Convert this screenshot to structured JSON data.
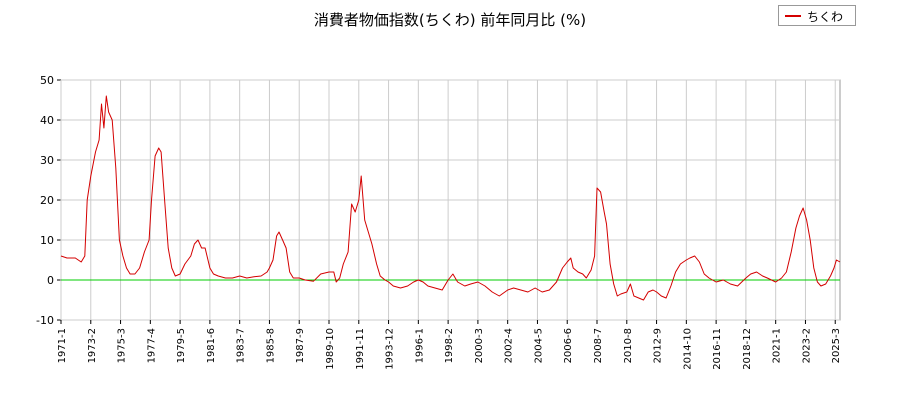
{
  "chart_data": {
    "type": "line",
    "title": "消費者物価指数(ちくわ)  前年同月比 (%)",
    "xlabel": "",
    "ylabel": "",
    "ylim": [
      -10,
      50
    ],
    "yticks": [
      -10,
      0,
      10,
      20,
      30,
      40,
      50
    ],
    "xlim": [
      "1971-1",
      "2025-7"
    ],
    "xticks": [
      "1971-1",
      "1973-2",
      "1975-3",
      "1977-4",
      "1979-5",
      "1981-6",
      "1983-7",
      "1985-8",
      "1987-9",
      "1989-10",
      "1991-11",
      "1993-12",
      "1996-1",
      "1998-2",
      "2000-3",
      "2002-4",
      "2004-5",
      "2006-6",
      "2008-7",
      "2010-8",
      "2012-9",
      "2014-10",
      "2016-11",
      "2018-12",
      "2021-1",
      "2023-2",
      "2025-3"
    ],
    "grid": true,
    "legend": "top-right",
    "colors": {
      "series": "#d40000",
      "zero_line": "#00cc00",
      "grid": "#cccccc"
    },
    "series": [
      {
        "name": "ちくわ",
        "points": [
          [
            "1971-1",
            6
          ],
          [
            "1971-6",
            5.5
          ],
          [
            "1972-1",
            5.5
          ],
          [
            "1972-6",
            4.5
          ],
          [
            "1972-9",
            6
          ],
          [
            "1972-11",
            20
          ],
          [
            "1973-2",
            26
          ],
          [
            "1973-6",
            32
          ],
          [
            "1973-9",
            35
          ],
          [
            "1973-11",
            44
          ],
          [
            "1974-1",
            38
          ],
          [
            "1974-3",
            46
          ],
          [
            "1974-5",
            42
          ],
          [
            "1974-8",
            40
          ],
          [
            "1974-11",
            28
          ],
          [
            "1975-2",
            10
          ],
          [
            "1975-5",
            6
          ],
          [
            "1975-8",
            3
          ],
          [
            "1975-11",
            1.5
          ],
          [
            "1976-3",
            1.5
          ],
          [
            "1976-7",
            3
          ],
          [
            "1976-11",
            7
          ],
          [
            "1977-3",
            10
          ],
          [
            "1977-5",
            20
          ],
          [
            "1977-8",
            31
          ],
          [
            "1977-11",
            33
          ],
          [
            "1978-1",
            32
          ],
          [
            "1978-4",
            20
          ],
          [
            "1978-7",
            8
          ],
          [
            "1978-10",
            3
          ],
          [
            "1979-1",
            1
          ],
          [
            "1979-5",
            1.5
          ],
          [
            "1979-9",
            4
          ],
          [
            "1980-2",
            6
          ],
          [
            "1980-5",
            9
          ],
          [
            "1980-8",
            10
          ],
          [
            "1980-11",
            8
          ],
          [
            "1981-2",
            8
          ],
          [
            "1981-6",
            3
          ],
          [
            "1981-9",
            1.5
          ],
          [
            "1982-1",
            1
          ],
          [
            "1982-7",
            0.5
          ],
          [
            "1983-1",
            0.5
          ],
          [
            "1983-7",
            1
          ],
          [
            "1984-1",
            0.5
          ],
          [
            "1984-7",
            0.8
          ],
          [
            "1985-1",
            1
          ],
          [
            "1985-6",
            2
          ],
          [
            "1985-8",
            3
          ],
          [
            "1985-11",
            5
          ],
          [
            "1986-2",
            11
          ],
          [
            "1986-4",
            12
          ],
          [
            "1986-7",
            10
          ],
          [
            "1986-10",
            8
          ],
          [
            "1987-1",
            2
          ],
          [
            "1987-4",
            0.5
          ],
          [
            "1987-9",
            0.5
          ],
          [
            "1988-2",
            0
          ],
          [
            "1988-9",
            -0.3
          ],
          [
            "1989-3",
            1.5
          ],
          [
            "1989-10",
            2
          ],
          [
            "1990-2",
            2
          ],
          [
            "1990-4",
            -0.5
          ],
          [
            "1990-7",
            0.5
          ],
          [
            "1990-10",
            4
          ],
          [
            "1991-2",
            7
          ],
          [
            "1991-5",
            19
          ],
          [
            "1991-8",
            17
          ],
          [
            "1991-11",
            20
          ],
          [
            "1992-1",
            26
          ],
          [
            "1992-4",
            15
          ],
          [
            "1992-7",
            12
          ],
          [
            "1992-10",
            9
          ],
          [
            "1993-2",
            4
          ],
          [
            "1993-5",
            1
          ],
          [
            "1993-9",
            0
          ],
          [
            "1993-12",
            -0.5
          ],
          [
            "1994-4",
            -1.5
          ],
          [
            "1994-10",
            -2
          ],
          [
            "1995-4",
            -1.5
          ],
          [
            "1995-9",
            -0.5
          ],
          [
            "1996-1",
            0
          ],
          [
            "1996-5",
            -0.5
          ],
          [
            "1996-9",
            -1.5
          ],
          [
            "1997-3",
            -2
          ],
          [
            "1997-9",
            -2.5
          ],
          [
            "1998-2",
            0
          ],
          [
            "1998-6",
            1.5
          ],
          [
            "1998-10",
            -0.5
          ],
          [
            "1999-4",
            -1.5
          ],
          [
            "1999-9",
            -1
          ],
          [
            "2000-3",
            -0.5
          ],
          [
            "2000-9",
            -1.5
          ],
          [
            "2001-3",
            -3
          ],
          [
            "2001-9",
            -4
          ],
          [
            "2002-4",
            -2.5
          ],
          [
            "2002-9",
            -2
          ],
          [
            "2003-3",
            -2.5
          ],
          [
            "2003-9",
            -3
          ],
          [
            "2004-3",
            -2
          ],
          [
            "2004-9",
            -3
          ],
          [
            "2005-3",
            -2.5
          ],
          [
            "2005-9",
            -0.5
          ],
          [
            "2006-2",
            3
          ],
          [
            "2006-6",
            4.5
          ],
          [
            "2006-9",
            5.5
          ],
          [
            "2006-11",
            3
          ],
          [
            "2007-3",
            2
          ],
          [
            "2007-7",
            1.5
          ],
          [
            "2007-10",
            0.5
          ],
          [
            "2008-2",
            2.5
          ],
          [
            "2008-5",
            6
          ],
          [
            "2008-7",
            23
          ],
          [
            "2008-10",
            22
          ],
          [
            "2009-1",
            17
          ],
          [
            "2009-3",
            14
          ],
          [
            "2009-6",
            4
          ],
          [
            "2009-9",
            -1
          ],
          [
            "2009-12",
            -4
          ],
          [
            "2010-3",
            -3.5
          ],
          [
            "2010-8",
            -3
          ],
          [
            "2010-11",
            -1
          ],
          [
            "2011-2",
            -4
          ],
          [
            "2011-6",
            -4.5
          ],
          [
            "2011-10",
            -5
          ],
          [
            "2012-2",
            -3
          ],
          [
            "2012-6",
            -2.5
          ],
          [
            "2012-9",
            -3
          ],
          [
            "2013-1",
            -4
          ],
          [
            "2013-5",
            -4.5
          ],
          [
            "2013-9",
            -1.5
          ],
          [
            "2014-1",
            2
          ],
          [
            "2014-5",
            4
          ],
          [
            "2014-10",
            5
          ],
          [
            "2015-1",
            5.5
          ],
          [
            "2015-5",
            6
          ],
          [
            "2015-9",
            4.5
          ],
          [
            "2016-1",
            1.5
          ],
          [
            "2016-5",
            0.5
          ],
          [
            "2016-11",
            -0.5
          ],
          [
            "2017-5",
            0
          ],
          [
            "2017-11",
            -1
          ],
          [
            "2018-5",
            -1.5
          ],
          [
            "2018-12",
            0.5
          ],
          [
            "2019-4",
            1.5
          ],
          [
            "2019-9",
            2
          ],
          [
            "2020-2",
            1
          ],
          [
            "2020-6",
            0.5
          ],
          [
            "2021-1",
            -0.5
          ],
          [
            "2021-6",
            0.5
          ],
          [
            "2021-10",
            2
          ],
          [
            "2022-2",
            7
          ],
          [
            "2022-6",
            13
          ],
          [
            "2022-9",
            16
          ],
          [
            "2022-12",
            18
          ],
          [
            "2023-3",
            15
          ],
          [
            "2023-6",
            10
          ],
          [
            "2023-9",
            3
          ],
          [
            "2023-12",
            -0.5
          ],
          [
            "2024-3",
            -1.5
          ],
          [
            "2024-7",
            -1
          ],
          [
            "2024-11",
            1
          ],
          [
            "2025-2",
            3
          ],
          [
            "2025-4",
            5
          ],
          [
            "2025-7",
            4.5
          ]
        ]
      }
    ]
  }
}
